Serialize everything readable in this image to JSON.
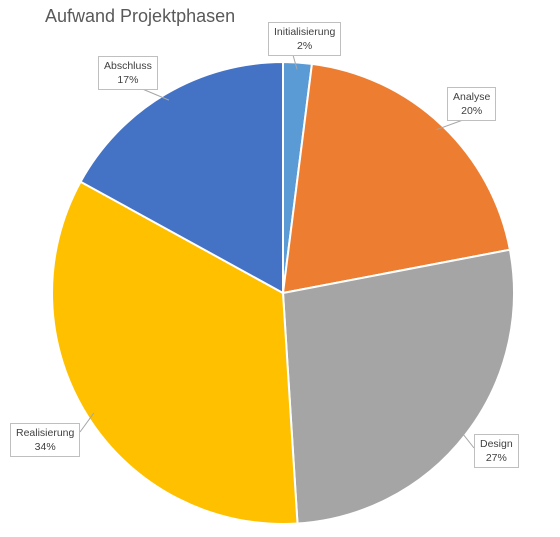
{
  "chart_data": {
    "type": "pie",
    "title": "Aufwand Projektphasen",
    "slices": [
      {
        "label": "Initialisierung",
        "value": 2,
        "percent_label": "2%",
        "color": "#5B9BD5"
      },
      {
        "label": "Analyse",
        "value": 20,
        "percent_label": "20%",
        "color": "#ED7D31"
      },
      {
        "label": "Design",
        "value": 27,
        "percent_label": "27%",
        "color": "#A5A5A5"
      },
      {
        "label": "Realisierung",
        "value": 34,
        "percent_label": "34%",
        "color": "#FFC000"
      },
      {
        "label": "Abschluss",
        "value": 17,
        "percent_label": "17%",
        "color": "#4472C4"
      }
    ],
    "start_angle": "top",
    "direction": "clockwise",
    "data_labels": "callouts with leader lines",
    "legend": "none"
  }
}
